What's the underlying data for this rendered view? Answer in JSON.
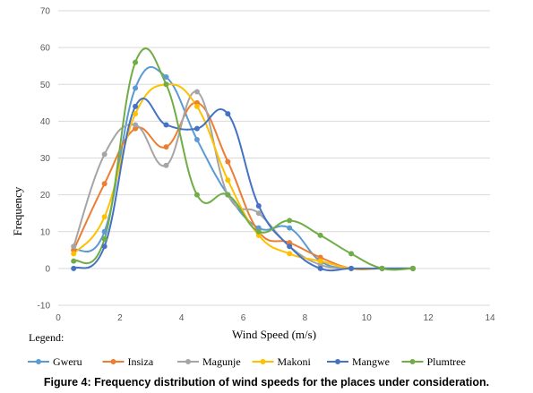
{
  "caption": "Figure 4: Frequency distribution of wind speeds for the places under consideration.",
  "chart_data": {
    "type": "line",
    "xlabel": "Wind Speed (m/s)",
    "ylabel": "Frequency",
    "legend_title": "Legend:",
    "legend_position": "bottom",
    "xlim": [
      0,
      14
    ],
    "ylim": [
      -10,
      70
    ],
    "xticks": [
      0,
      2,
      4,
      6,
      8,
      10,
      12,
      14
    ],
    "yticks": [
      -10,
      0,
      10,
      20,
      30,
      40,
      50,
      60,
      70
    ],
    "grid": "horizontal",
    "smooth": true,
    "series": [
      {
        "name": "Gweru",
        "color": "#5b9bd5",
        "x": [
          0.5,
          1.5,
          2.5,
          3.5,
          4.5,
          5.5,
          6.5,
          7.5,
          8.5,
          9.5,
          10.5,
          11.5
        ],
        "y": [
          5,
          10,
          49,
          52,
          35,
          20,
          11,
          11,
          2,
          0,
          0,
          0
        ]
      },
      {
        "name": "Insiza",
        "color": "#ed7d31",
        "x": [
          0.5,
          1.5,
          2.5,
          3.5,
          4.5,
          5.5,
          6.5,
          7.5,
          8.5,
          9.5,
          10.5,
          11.5
        ],
        "y": [
          5,
          23,
          38,
          33,
          45,
          29,
          10,
          7,
          3,
          0,
          0,
          0
        ]
      },
      {
        "name": "Magunje",
        "color": "#a5a5a5",
        "x": [
          0.5,
          1.5,
          2.5,
          3.5,
          4.5,
          5.5,
          6.5,
          7.5,
          8.5,
          9.5,
          10.5,
          11.5
        ],
        "y": [
          6,
          31,
          39,
          28,
          48,
          20,
          15,
          6,
          1,
          0,
          0,
          0
        ]
      },
      {
        "name": "Makoni",
        "color": "#ffc000",
        "x": [
          0.5,
          1.5,
          2.5,
          3.5,
          4.5,
          5.5,
          6.5,
          7.5,
          8.5,
          9.5,
          10.5,
          11.5
        ],
        "y": [
          4,
          14,
          42,
          50,
          44,
          24,
          9,
          4,
          2,
          0,
          0,
          0
        ]
      },
      {
        "name": "Mangwe",
        "color": "#4472c4",
        "x": [
          0.5,
          1.5,
          2.5,
          3.5,
          4.5,
          5.5,
          6.5,
          7.5,
          8.5,
          9.5,
          10.5,
          11.5
        ],
        "y": [
          0,
          6,
          44,
          39,
          38,
          42,
          17,
          6,
          0,
          0,
          0,
          0
        ]
      },
      {
        "name": "Plumtree",
        "color": "#70ad47",
        "x": [
          0.5,
          1.5,
          2.5,
          3.5,
          4.5,
          5.5,
          6.5,
          7.5,
          8.5,
          9.5,
          10.5,
          11.5
        ],
        "y": [
          2,
          8,
          56,
          50,
          20,
          20,
          10,
          13,
          9,
          4,
          0,
          0
        ]
      }
    ]
  }
}
